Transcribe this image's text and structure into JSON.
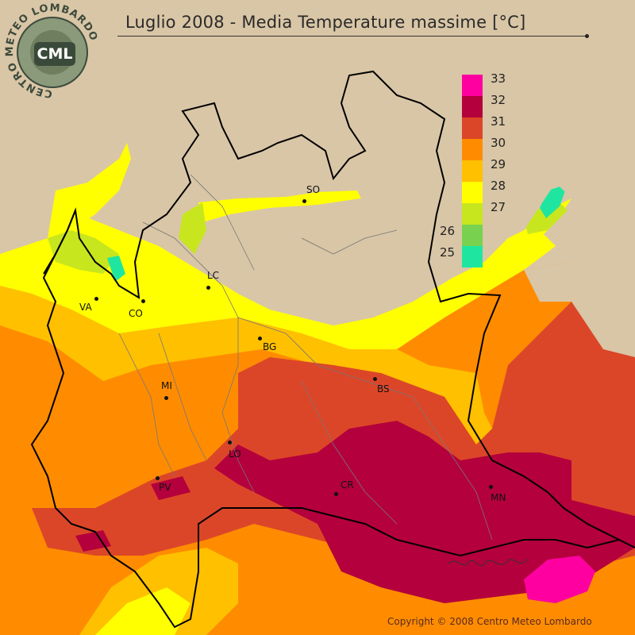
{
  "title": "Luglio 2008 - Media Temperature massime [°C]",
  "logo": {
    "text": "CML",
    "ring_text": "CENTRO METEO LOMBARDO"
  },
  "legend": [
    {
      "label": "33",
      "color": "#ff00a0"
    },
    {
      "label": "32",
      "color": "#b4003c"
    },
    {
      "label": "31",
      "color": "#dc4628"
    },
    {
      "label": "30",
      "color": "#ff8c00"
    },
    {
      "label": "29",
      "color": "#ffc000"
    },
    {
      "label": "28",
      "color": "#ffff00"
    },
    {
      "label": "27",
      "color": "#c8e61e"
    },
    {
      "label": "26",
      "color": "#78d250"
    },
    {
      "label": "25",
      "color": "#1ee6a0"
    }
  ],
  "cities": [
    {
      "id": "so",
      "label": "SO"
    },
    {
      "id": "lc",
      "label": "LC"
    },
    {
      "id": "va",
      "label": "VA"
    },
    {
      "id": "co",
      "label": "CO"
    },
    {
      "id": "bg",
      "label": "BG"
    },
    {
      "id": "bs",
      "label": "BS"
    },
    {
      "id": "mi",
      "label": "MI"
    },
    {
      "id": "lo",
      "label": "LO"
    },
    {
      "id": "pv",
      "label": "PV"
    },
    {
      "id": "cr",
      "label": "CR"
    },
    {
      "id": "mn",
      "label": "MN"
    }
  ],
  "copyright": "Copyright © 2008 Centro Meteo Lombardo",
  "colors": {
    "background": "#d9c6a6",
    "border": "#000000"
  }
}
